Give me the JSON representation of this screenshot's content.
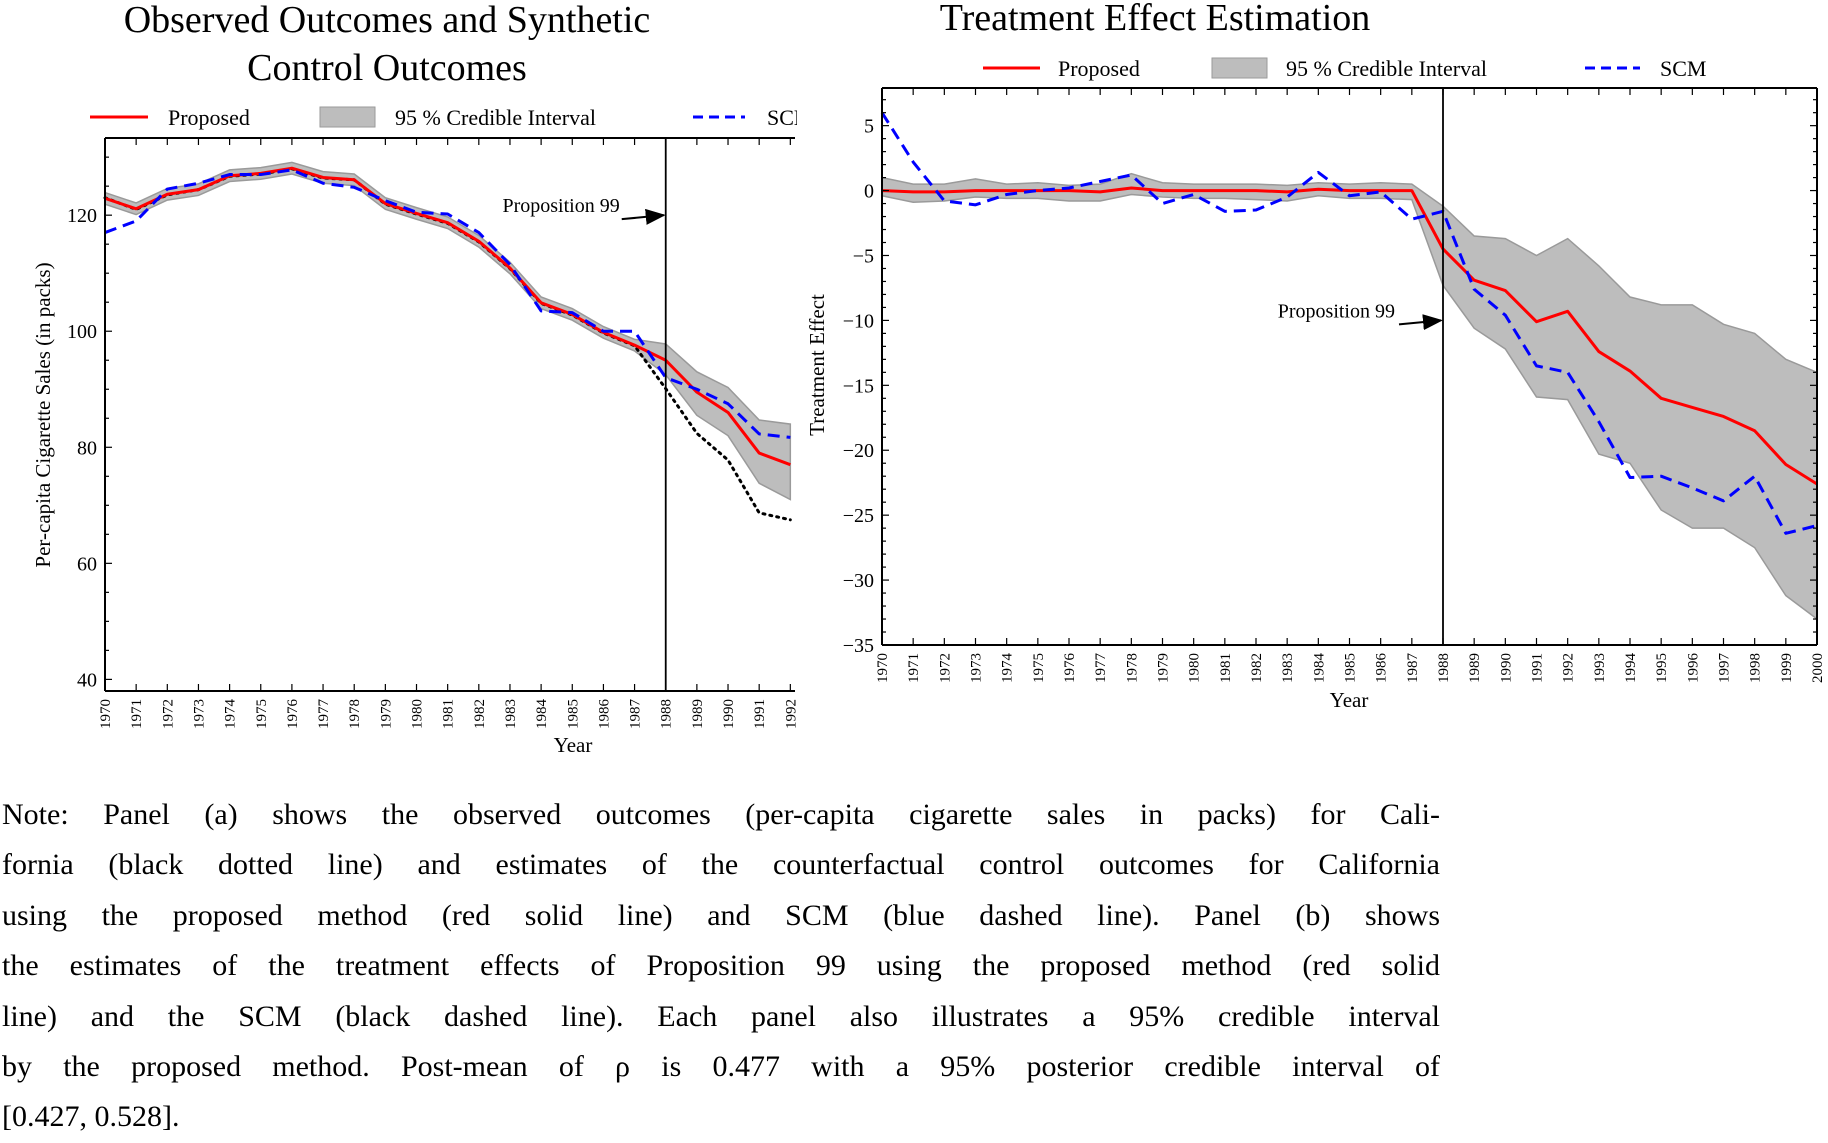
{
  "colors": {
    "proposed": "#ff0000",
    "scm": "#0000ff",
    "observed": "#000000",
    "ci_fill": "#bdbdbd",
    "ci_edge": "#9a9a9a"
  },
  "chart_data": [
    {
      "type": "line",
      "title_lines": [
        "Observed Outcomes and Synthetic",
        "Control Outcomes"
      ],
      "xlabel": "Year",
      "ylabel": "Per-capita Cigarette Sales (in packs)",
      "xlim": [
        1970,
        1992.15
      ],
      "ylim": [
        38,
        133.3
      ],
      "yticks": [
        40,
        60,
        80,
        100,
        120
      ],
      "yminor_step": 5,
      "legend": {
        "placement": "top",
        "items": [
          "Proposed",
          "95 % Credible Interval",
          "SCM"
        ]
      },
      "annotation": {
        "text": "Proposition 99",
        "x": 1988,
        "y": 120
      },
      "vline": 1988,
      "x": [
        1970,
        1971,
        1972,
        1973,
        1974,
        1975,
        1976,
        1977,
        1978,
        1979,
        1980,
        1981,
        1982,
        1983,
        1984,
        1985,
        1986,
        1987,
        1988,
        1989,
        1990,
        1991,
        1992
      ],
      "series": [
        {
          "name": "95 % Credible Interval",
          "kind": "band",
          "lower": [
            121.9,
            120.1,
            122.6,
            123.4,
            125.8,
            126.2,
            127.1,
            125.5,
            125.1,
            121,
            119.3,
            117.7,
            114.5,
            109.9,
            103.9,
            101.9,
            98.8,
            96.6,
            92.5,
            85.5,
            82,
            73.8,
            71
          ],
          "upper": [
            123.9,
            122.1,
            124.6,
            125.4,
            127.8,
            128.2,
            129.1,
            127.5,
            127.1,
            123,
            121.3,
            119.7,
            116.5,
            111.9,
            105.9,
            103.9,
            100.8,
            98.6,
            97.8,
            93,
            90.3,
            84.7,
            84
          ]
        },
        {
          "name": "Observed (California)",
          "kind": "dotted",
          "values": [
            123,
            121,
            123.5,
            124.4,
            126.7,
            127.1,
            128,
            126.4,
            126.1,
            121.9,
            120.2,
            118.6,
            115.4,
            110.8,
            104.8,
            102.8,
            99.7,
            97.5,
            90.1,
            82.4,
            77.8,
            68.7,
            67.5
          ]
        },
        {
          "name": "Proposed",
          "kind": "solid",
          "values": [
            122.9,
            121.1,
            123.6,
            124.4,
            126.8,
            127.2,
            128.1,
            126.5,
            126.1,
            122,
            120.3,
            118.7,
            115.5,
            110.9,
            104.9,
            102.9,
            99.8,
            97.6,
            95,
            89.5,
            86,
            79,
            77
          ]
        },
        {
          "name": "SCM",
          "kind": "dashed",
          "values": [
            117,
            119,
            124.5,
            125.5,
            127,
            127,
            127.8,
            125.5,
            124.8,
            122.5,
            120.5,
            120.2,
            117,
            111.5,
            103.5,
            103.2,
            100,
            100,
            92,
            90,
            87.5,
            82.3,
            81.7
          ]
        }
      ]
    },
    {
      "type": "line",
      "title_lines": [
        "Treatment Effect Estimation"
      ],
      "xlabel": "Year",
      "ylabel": "Treatment Effect",
      "xlim": [
        1970,
        2000
      ],
      "ylim": [
        -35,
        7.9
      ],
      "yticks": [
        -35,
        -30,
        -25,
        -20,
        -15,
        -10,
        -5,
        0,
        5
      ],
      "yminor_step": 1,
      "legend": {
        "placement": "top",
        "items": [
          "Proposed",
          "95 % Credible Interval",
          "SCM"
        ]
      },
      "annotation": {
        "text": "Proposition 99",
        "x": 1988,
        "y": -10
      },
      "vline": 1988,
      "x": [
        1970,
        1971,
        1972,
        1973,
        1974,
        1975,
        1976,
        1977,
        1978,
        1979,
        1980,
        1981,
        1982,
        1983,
        1984,
        1985,
        1986,
        1987,
        1988,
        1989,
        1990,
        1991,
        1992,
        1993,
        1994,
        1995,
        1996,
        1997,
        1998,
        1999,
        2000
      ],
      "series": [
        {
          "name": "95 % Credible Interval",
          "kind": "band",
          "lower": [
            -0.4,
            -0.9,
            -0.8,
            -0.5,
            -0.6,
            -0.6,
            -0.8,
            -0.8,
            -0.3,
            -0.5,
            -0.6,
            -0.6,
            -0.7,
            -0.8,
            -0.4,
            -0.6,
            -0.6,
            -0.7,
            -7.3,
            -10.6,
            -12.2,
            -15.9,
            -16.1,
            -20.3,
            -21,
            -24.6,
            -26,
            -26,
            -27.5,
            -31.2,
            -33
          ],
          "upper": [
            1,
            0.5,
            0.5,
            0.9,
            0.5,
            0.6,
            0.4,
            0.5,
            1.3,
            0.6,
            0.5,
            0.5,
            0.5,
            0.4,
            0.6,
            0.5,
            0.6,
            0.5,
            -1.2,
            -3.5,
            -3.7,
            -5,
            -3.7,
            -5.8,
            -8.2,
            -8.8,
            -8.8,
            -10.3,
            -11,
            -13,
            -14
          ]
        },
        {
          "name": "Proposed",
          "kind": "solid",
          "values": [
            0,
            -0.1,
            -0.1,
            0,
            0,
            0,
            0,
            -0.1,
            0.2,
            0,
            0,
            0,
            0,
            -0.1,
            0.1,
            0,
            0,
            0,
            -4.5,
            -6.9,
            -7.7,
            -10.1,
            -9.3,
            -12.4,
            -13.9,
            -16,
            -16.7,
            -17.4,
            -18.5,
            -21.1,
            -22.6
          ]
        },
        {
          "name": "SCM",
          "kind": "dashed",
          "values": [
            6,
            2.2,
            -0.8,
            -1.1,
            -0.3,
            0,
            0.2,
            0.7,
            1.2,
            -1,
            -0.3,
            -1.6,
            -1.5,
            -0.5,
            1.4,
            -0.4,
            -0.1,
            -2.2,
            -1.6,
            -7.6,
            -9.6,
            -13.5,
            -14,
            -17.8,
            -22.1,
            -22,
            -22.9,
            -23.9,
            -22,
            -26.4,
            -25.8
          ]
        }
      ]
    }
  ],
  "note": {
    "lines": [
      "Note: Panel (a) shows the observed outcomes (per-capita cigarette sales in packs) for Cali-",
      "fornia (black dotted line) and estimates of the counterfactual control outcomes for California",
      "using the proposed method (red solid line) and SCM (blue dashed line).  Panel (b) shows",
      "the estimates of the treatment effects of Proposition 99 using the proposed method (red solid",
      "line) and the SCM (black dashed line).  Each panel also illustrates a 95% credible interval",
      "by the proposed method.  Post-mean of ρ is 0.477 with a 95% posterior credible interval of",
      "[0.427, 0.528]."
    ]
  }
}
